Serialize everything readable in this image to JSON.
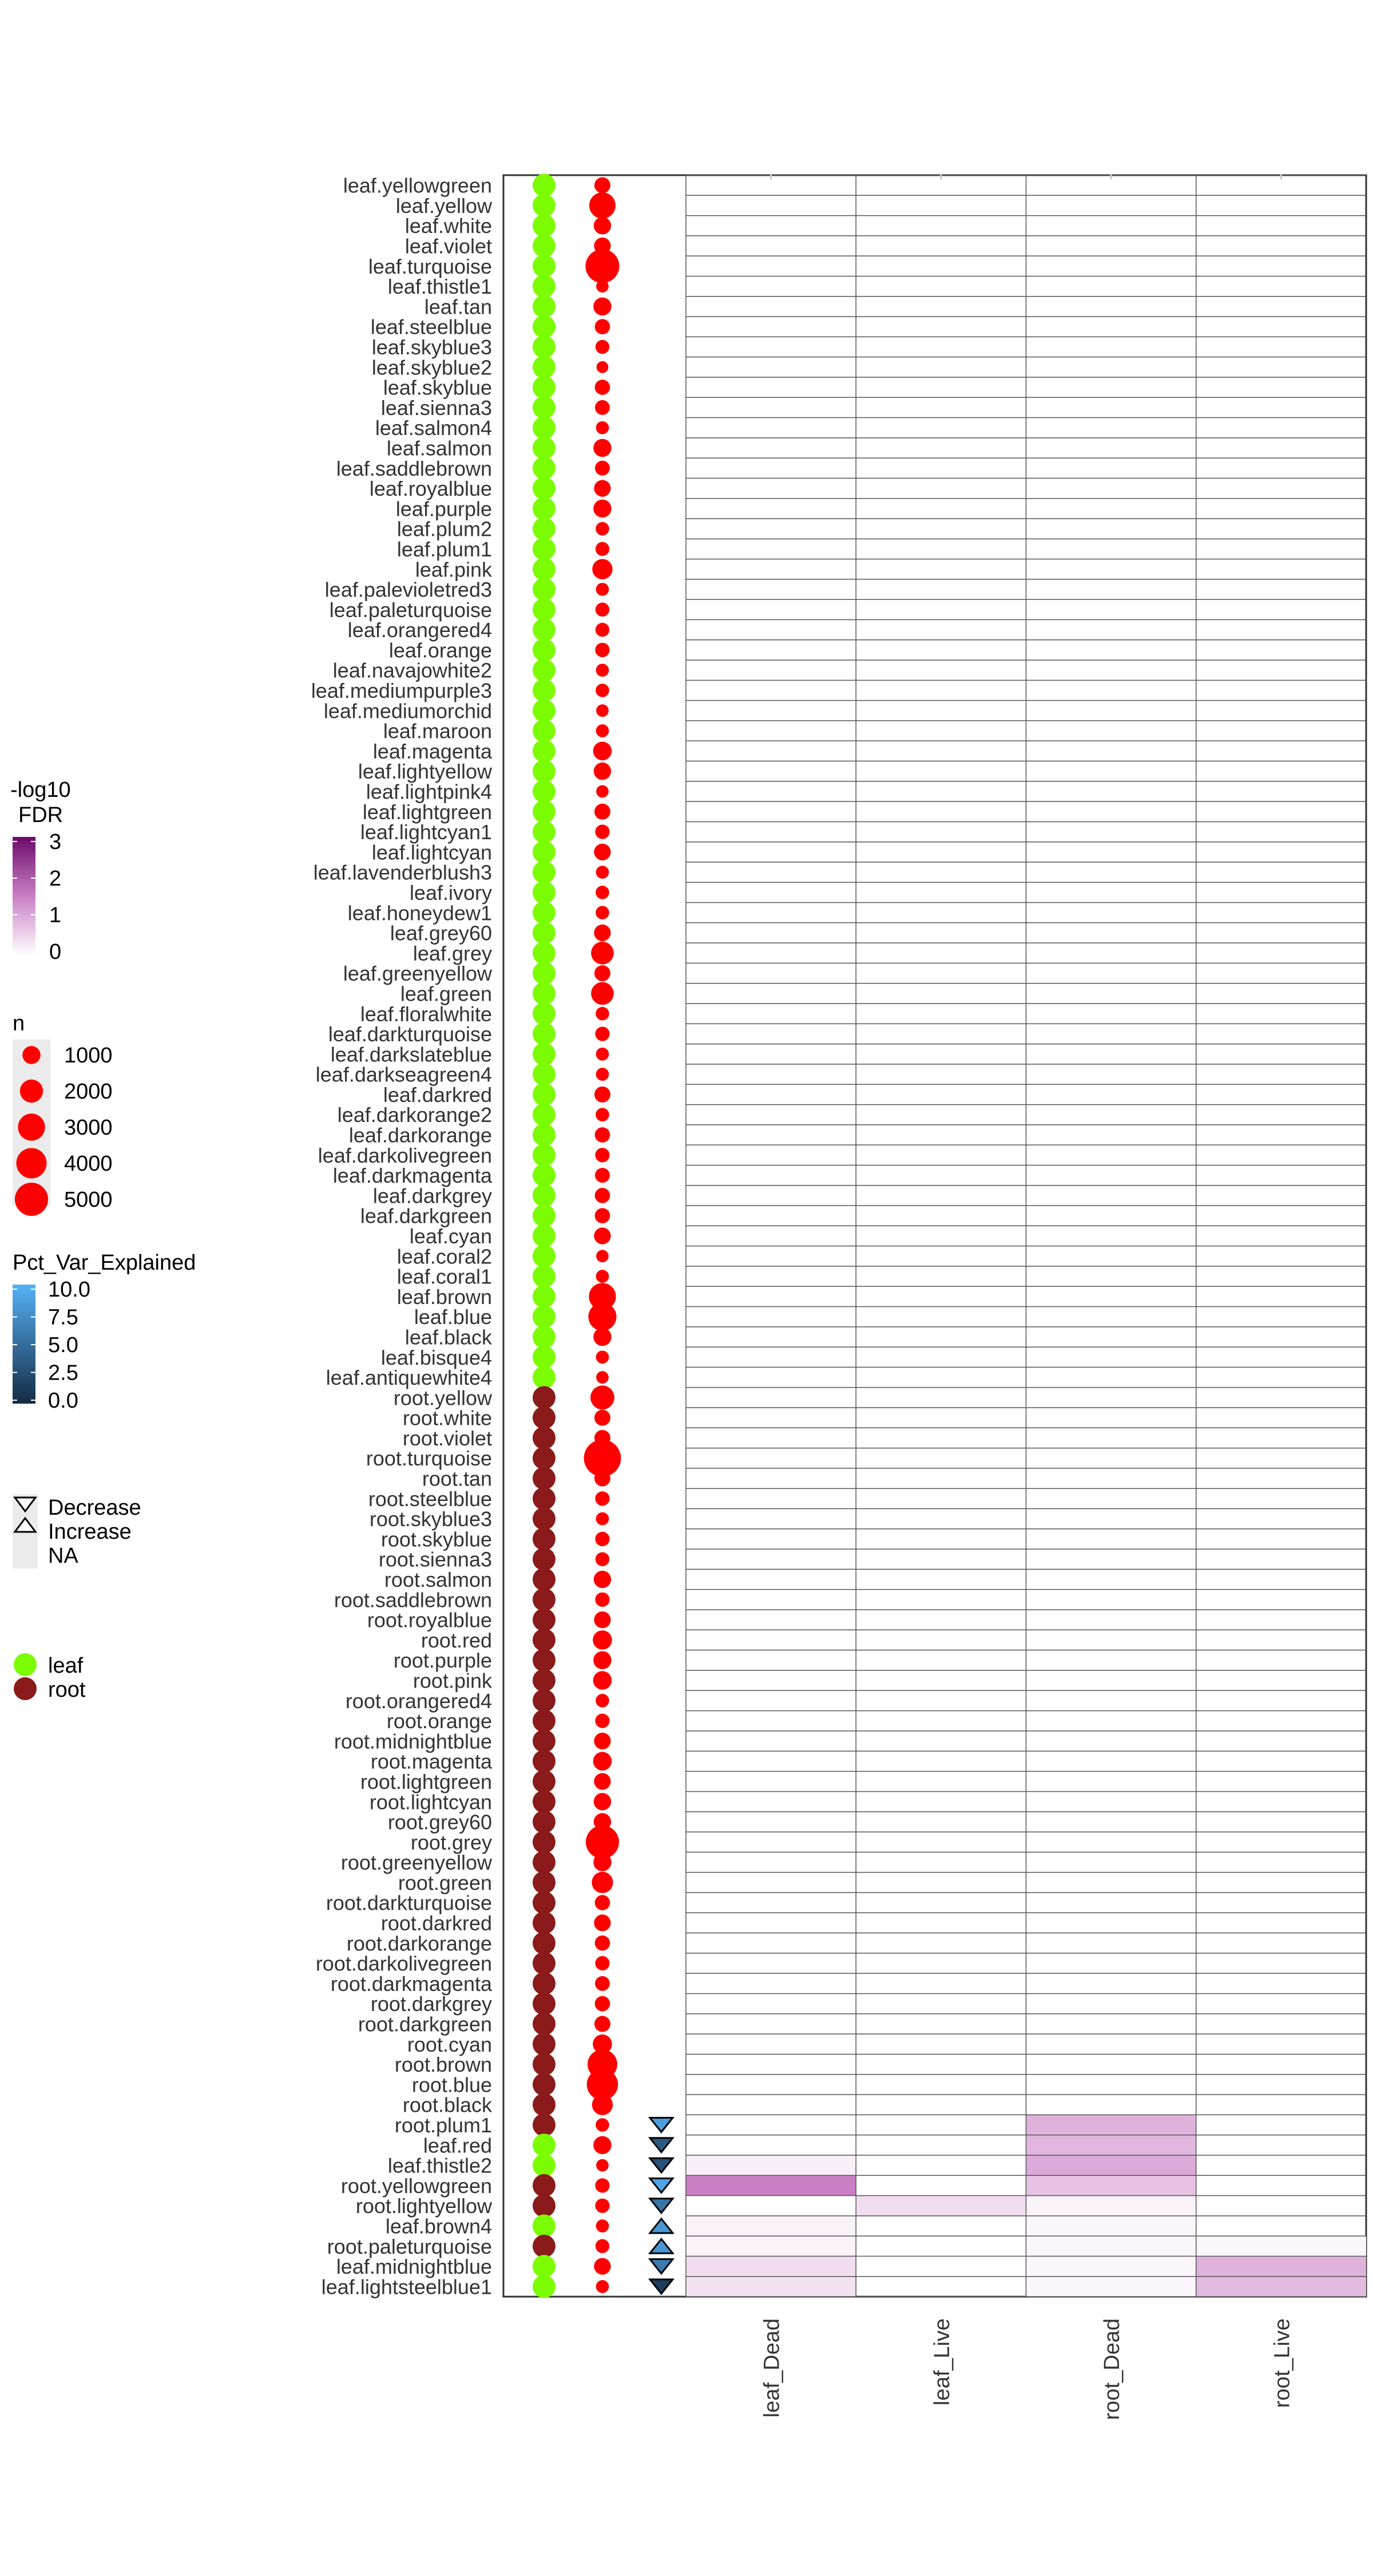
{
  "chart_data": {
    "type": "heatmap",
    "title": "",
    "xlabel": "",
    "ylabel": "",
    "columns": [
      "leaf_Dead",
      "leaf_Live",
      "root_Dead",
      "root_Live"
    ],
    "colors": {
      "leaf": "#7CFC00",
      "root": "#8B1A1A",
      "size_point": "#FF0000",
      "fdr_low": "#FFFFFF",
      "fdr_high": "#6A0A6A",
      "pct_low": "#132B43",
      "pct_high": "#56B1F7",
      "na": "#EBEBEB",
      "grid": "#555555"
    },
    "modules": [
      {
        "label": "leaf.yellowgreen",
        "tissue": "leaf",
        "n": 700
      },
      {
        "label": "leaf.yellow",
        "tissue": "leaf",
        "n": 2800
      },
      {
        "label": "leaf.white",
        "tissue": "leaf",
        "n": 900
      },
      {
        "label": "leaf.violet",
        "tissue": "leaf",
        "n": 800
      },
      {
        "label": "leaf.turquoise",
        "tissue": "leaf",
        "n": 5200
      },
      {
        "label": "leaf.thistle1",
        "tissue": "leaf",
        "n": 300
      },
      {
        "label": "leaf.tan",
        "tissue": "leaf",
        "n": 1000
      },
      {
        "label": "leaf.steelblue",
        "tissue": "leaf",
        "n": 600
      },
      {
        "label": "leaf.skyblue3",
        "tissue": "leaf",
        "n": 450
      },
      {
        "label": "leaf.skyblue2",
        "tissue": "leaf",
        "n": 250
      },
      {
        "label": "leaf.skyblue",
        "tissue": "leaf",
        "n": 600
      },
      {
        "label": "leaf.sienna3",
        "tissue": "leaf",
        "n": 550
      },
      {
        "label": "leaf.salmon4",
        "tissue": "leaf",
        "n": 350
      },
      {
        "label": "leaf.salmon",
        "tissue": "leaf",
        "n": 1000
      },
      {
        "label": "leaf.saddlebrown",
        "tissue": "leaf",
        "n": 550
      },
      {
        "label": "leaf.royalblue",
        "tissue": "leaf",
        "n": 800
      },
      {
        "label": "leaf.purple",
        "tissue": "leaf",
        "n": 1000
      },
      {
        "label": "leaf.plum2",
        "tissue": "leaf",
        "n": 400
      },
      {
        "label": "leaf.plum1",
        "tissue": "leaf",
        "n": 450
      },
      {
        "label": "leaf.pink",
        "tissue": "leaf",
        "n": 1400
      },
      {
        "label": "leaf.palevioletred3",
        "tissue": "leaf",
        "n": 350
      },
      {
        "label": "leaf.paleturquoise",
        "tissue": "leaf",
        "n": 450
      },
      {
        "label": "leaf.orangered4",
        "tissue": "leaf",
        "n": 450
      },
      {
        "label": "leaf.orange",
        "tissue": "leaf",
        "n": 500
      },
      {
        "label": "leaf.navajowhite2",
        "tissue": "leaf",
        "n": 350
      },
      {
        "label": "leaf.mediumpurple3",
        "tissue": "leaf",
        "n": 400
      },
      {
        "label": "leaf.mediumorchid",
        "tissue": "leaf",
        "n": 300
      },
      {
        "label": "leaf.maroon",
        "tissue": "leaf",
        "n": 350
      },
      {
        "label": "leaf.magenta",
        "tissue": "leaf",
        "n": 1100
      },
      {
        "label": "leaf.lightyellow",
        "tissue": "leaf",
        "n": 900
      },
      {
        "label": "leaf.lightpink4",
        "tissue": "leaf",
        "n": 300
      },
      {
        "label": "leaf.lightgreen",
        "tissue": "leaf",
        "n": 700
      },
      {
        "label": "leaf.lightcyan1",
        "tissue": "leaf",
        "n": 500
      },
      {
        "label": "leaf.lightcyan",
        "tissue": "leaf",
        "n": 800
      },
      {
        "label": "leaf.lavenderblush3",
        "tissue": "leaf",
        "n": 350
      },
      {
        "label": "leaf.ivory",
        "tissue": "leaf",
        "n": 400
      },
      {
        "label": "leaf.honeydew1",
        "tissue": "leaf",
        "n": 400
      },
      {
        "label": "leaf.grey60",
        "tissue": "leaf",
        "n": 800
      },
      {
        "label": "leaf.grey",
        "tissue": "leaf",
        "n": 1900
      },
      {
        "label": "leaf.greenyellow",
        "tissue": "leaf",
        "n": 700
      },
      {
        "label": "leaf.green",
        "tissue": "leaf",
        "n": 1900
      },
      {
        "label": "leaf.floralwhite",
        "tissue": "leaf",
        "n": 400
      },
      {
        "label": "leaf.darkturquoise",
        "tissue": "leaf",
        "n": 500
      },
      {
        "label": "leaf.darkslateblue",
        "tissue": "leaf",
        "n": 350
      },
      {
        "label": "leaf.darkseagreen4",
        "tissue": "leaf",
        "n": 350
      },
      {
        "label": "leaf.darkred",
        "tissue": "leaf",
        "n": 700
      },
      {
        "label": "leaf.darkorange2",
        "tissue": "leaf",
        "n": 400
      },
      {
        "label": "leaf.darkorange",
        "tissue": "leaf",
        "n": 600
      },
      {
        "label": "leaf.darkolivegreen",
        "tissue": "leaf",
        "n": 500
      },
      {
        "label": "leaf.darkmagenta",
        "tissue": "leaf",
        "n": 550
      },
      {
        "label": "leaf.darkgrey",
        "tissue": "leaf",
        "n": 600
      },
      {
        "label": "leaf.darkgreen",
        "tissue": "leaf",
        "n": 600
      },
      {
        "label": "leaf.cyan",
        "tissue": "leaf",
        "n": 800
      },
      {
        "label": "leaf.coral2",
        "tissue": "leaf",
        "n": 300
      },
      {
        "label": "leaf.coral1",
        "tissue": "leaf",
        "n": 350
      },
      {
        "label": "leaf.brown",
        "tissue": "leaf",
        "n": 3000
      },
      {
        "label": "leaf.blue",
        "tissue": "leaf",
        "n": 3300
      },
      {
        "label": "leaf.black",
        "tissue": "leaf",
        "n": 1000
      },
      {
        "label": "leaf.bisque4",
        "tissue": "leaf",
        "n": 350
      },
      {
        "label": "leaf.antiquewhite4",
        "tissue": "leaf",
        "n": 300
      },
      {
        "label": "root.yellow",
        "tissue": "root",
        "n": 2200
      },
      {
        "label": "root.white",
        "tissue": "root",
        "n": 700
      },
      {
        "label": "root.violet",
        "tissue": "root",
        "n": 700
      },
      {
        "label": "root.turquoise",
        "tissue": "root",
        "n": 6500
      },
      {
        "label": "root.tan",
        "tissue": "root",
        "n": 700
      },
      {
        "label": "root.steelblue",
        "tissue": "root",
        "n": 500
      },
      {
        "label": "root.skyblue3",
        "tissue": "root",
        "n": 350
      },
      {
        "label": "root.skyblue",
        "tissue": "root",
        "n": 500
      },
      {
        "label": "root.sienna3",
        "tissue": "root",
        "n": 450
      },
      {
        "label": "root.salmon",
        "tissue": "root",
        "n": 900
      },
      {
        "label": "root.saddlebrown",
        "tissue": "root",
        "n": 500
      },
      {
        "label": "root.royalblue",
        "tissue": "root",
        "n": 800
      },
      {
        "label": "root.red",
        "tissue": "root",
        "n": 1200
      },
      {
        "label": "root.purple",
        "tissue": "root",
        "n": 1000
      },
      {
        "label": "root.pink",
        "tissue": "root",
        "n": 1100
      },
      {
        "label": "root.orangered4",
        "tissue": "root",
        "n": 400
      },
      {
        "label": "root.orange",
        "tissue": "root",
        "n": 500
      },
      {
        "label": "root.midnightblue",
        "tissue": "root",
        "n": 800
      },
      {
        "label": "root.magenta",
        "tissue": "root",
        "n": 1100
      },
      {
        "label": "root.lightgreen",
        "tissue": "root",
        "n": 800
      },
      {
        "label": "root.lightcyan",
        "tissue": "root",
        "n": 900
      },
      {
        "label": "root.grey60",
        "tissue": "root",
        "n": 900
      },
      {
        "label": "root.grey",
        "tissue": "root",
        "n": 5000
      },
      {
        "label": "root.greenyellow",
        "tissue": "root",
        "n": 1000
      },
      {
        "label": "root.green",
        "tissue": "root",
        "n": 1600
      },
      {
        "label": "root.darkturquoise",
        "tissue": "root",
        "n": 600
      },
      {
        "label": "root.darkred",
        "tissue": "root",
        "n": 800
      },
      {
        "label": "root.darkorange",
        "tissue": "root",
        "n": 600
      },
      {
        "label": "root.darkolivegreen",
        "tissue": "root",
        "n": 500
      },
      {
        "label": "root.darkmagenta",
        "tissue": "root",
        "n": 550
      },
      {
        "label": "root.darkgrey",
        "tissue": "root",
        "n": 600
      },
      {
        "label": "root.darkgreen",
        "tissue": "root",
        "n": 700
      },
      {
        "label": "root.cyan",
        "tissue": "root",
        "n": 1200
      },
      {
        "label": "root.brown",
        "tissue": "root",
        "n": 3800
      },
      {
        "label": "root.blue",
        "tissue": "root",
        "n": 4300
      },
      {
        "label": "root.black",
        "tissue": "root",
        "n": 1500
      },
      {
        "label": "root.plum1",
        "tissue": "root",
        "n": 400,
        "direction": "Decrease",
        "pct_var": 8.5,
        "fdr": {
          "root_Dead": 0.9
        }
      },
      {
        "label": "leaf.red",
        "tissue": "leaf",
        "n": 1000,
        "direction": "Decrease",
        "pct_var": 3.5,
        "fdr": {
          "root_Dead": 0.85
        }
      },
      {
        "label": "leaf.thistle2",
        "tissue": "leaf",
        "n": 300,
        "direction": "Decrease",
        "pct_var": 3.0,
        "fdr": {
          "leaf_Dead": 0.2,
          "root_Dead": 1.0
        }
      },
      {
        "label": "root.yellowgreen",
        "tissue": "root",
        "n": 500,
        "direction": "Decrease",
        "pct_var": 9.0,
        "fdr": {
          "leaf_Dead": 1.5,
          "root_Dead": 0.7
        }
      },
      {
        "label": "root.lightyellow",
        "tissue": "root",
        "n": 500,
        "direction": "Decrease",
        "pct_var": 5.5,
        "fdr": {
          "leaf_Live": 0.4,
          "root_Dead": 0.15
        }
      },
      {
        "label": "leaf.brown4",
        "tissue": "leaf",
        "n": 350,
        "direction": "Increase",
        "pct_var": 8.0,
        "fdr": {
          "leaf_Dead": 0.15,
          "root_Dead": 0.1
        }
      },
      {
        "label": "root.paleturquoise",
        "tissue": "root",
        "n": 450,
        "direction": "Increase",
        "pct_var": 8.0,
        "fdr": {
          "leaf_Dead": 0.15,
          "root_Dead": 0.1,
          "root_Live": 0.1
        }
      },
      {
        "label": "leaf.midnightblue",
        "tissue": "leaf",
        "n": 800,
        "direction": "Decrease",
        "pct_var": 6.0,
        "fdr": {
          "leaf_Dead": 0.4,
          "root_Dead": 0.1,
          "root_Live": 0.9
        }
      },
      {
        "label": "leaf.lightsteelblue1",
        "tissue": "leaf",
        "n": 350,
        "direction": "Decrease",
        "pct_var": 1.5,
        "fdr": {
          "leaf_Dead": 0.35,
          "root_Dead": 0.1,
          "root_Live": 0.8
        }
      }
    ],
    "legends": {
      "fdr": {
        "title_line1": "-log10",
        "title_line2": "FDR",
        "ticks": [
          "3",
          "2",
          "1",
          "0"
        ],
        "range": [
          0,
          3
        ]
      },
      "n": {
        "title": "n",
        "ticks": [
          "1000",
          "2000",
          "3000",
          "4000",
          "5000"
        ],
        "values": [
          1000,
          2000,
          3000,
          4000,
          5000
        ]
      },
      "pct": {
        "title": "Pct_Var_Explained",
        "ticks": [
          "10.0",
          "7.5",
          "5.0",
          "2.5",
          "0.0"
        ],
        "range": [
          0,
          10
        ]
      },
      "direction": {
        "items": [
          "Decrease",
          "Increase",
          "NA"
        ]
      },
      "tissue": {
        "items": [
          "leaf",
          "root"
        ]
      }
    }
  }
}
